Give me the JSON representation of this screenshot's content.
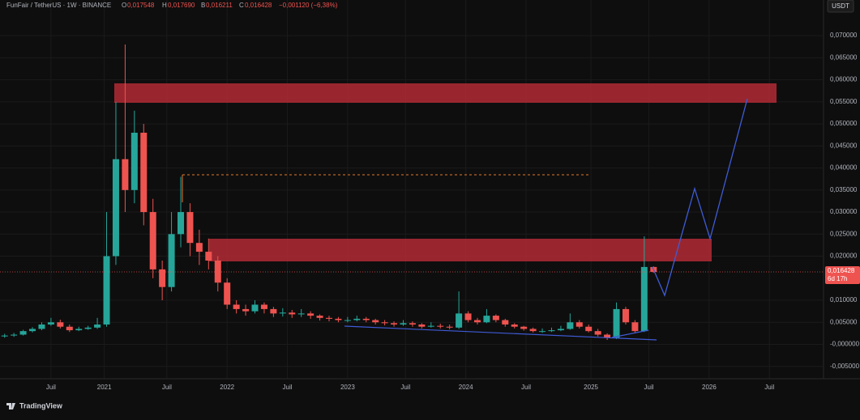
{
  "header": {
    "symbol": "FunFair / TetherUS · 1W · BINANCE",
    "o": "O",
    "open": "0,017548",
    "h": "H",
    "high": "0,017690",
    "b": "B",
    "low": "0,016211",
    "c": "C",
    "close": "0,016428",
    "change": "−0,001120 (−6,38%)",
    "currency": "USDT",
    "last_price_label": "0,016428",
    "countdown": "6d 17h",
    "brand": "TradingView"
  },
  "chart_data": {
    "type": "candlestick",
    "x": [
      2,
      6,
      10,
      14,
      18,
      22,
      26,
      30,
      34,
      38,
      42,
      46,
      50,
      54,
      58,
      62,
      66,
      70,
      74,
      78,
      82,
      86,
      90,
      94,
      98,
      102,
      106,
      110,
      114,
      118,
      122,
      126,
      130,
      134,
      138,
      142,
      146,
      150,
      154,
      158,
      162,
      166,
      170,
      174,
      178,
      182,
      186,
      190,
      194,
      198,
      202,
      206,
      210,
      214,
      218,
      222,
      226,
      230,
      234,
      238,
      242,
      246,
      250,
      254,
      258,
      262,
      266,
      270,
      274,
      278,
      282
    ],
    "open": [
      0.0018,
      0.002,
      0.0022,
      0.003,
      0.0035,
      0.0045,
      0.005,
      0.004,
      0.0032,
      0.0035,
      0.0038,
      0.0045,
      0.02,
      0.042,
      0.035,
      0.048,
      0.03,
      0.017,
      0.013,
      0.025,
      0.03,
      0.023,
      0.021,
      0.019,
      0.014,
      0.009,
      0.008,
      0.0075,
      0.009,
      0.008,
      0.007,
      0.0072,
      0.0068,
      0.007,
      0.0065,
      0.006,
      0.0058,
      0.0055,
      0.0055,
      0.0058,
      0.0055,
      0.005,
      0.0048,
      0.0045,
      0.0048,
      0.0045,
      0.004,
      0.0042,
      0.004,
      0.0038,
      0.007,
      0.0055,
      0.005,
      0.0065,
      0.0055,
      0.0045,
      0.004,
      0.0035,
      0.003,
      0.003,
      0.0032,
      0.0035,
      0.005,
      0.004,
      0.003,
      0.0022,
      0.0015,
      0.008,
      0.005,
      0.003,
      0.017548
    ],
    "high": [
      0.0024,
      0.0026,
      0.0033,
      0.0039,
      0.005,
      0.006,
      0.0056,
      0.0045,
      0.004,
      0.0042,
      0.006,
      0.03,
      0.055,
      0.068,
      0.053,
      0.05,
      0.033,
      0.019,
      0.03,
      0.038,
      0.032,
      0.026,
      0.024,
      0.02,
      0.015,
      0.01,
      0.009,
      0.01,
      0.0095,
      0.0085,
      0.0082,
      0.0078,
      0.008,
      0.0075,
      0.0068,
      0.0065,
      0.0062,
      0.0062,
      0.0065,
      0.0062,
      0.0058,
      0.0055,
      0.0052,
      0.0055,
      0.0052,
      0.0048,
      0.005,
      0.0047,
      0.0045,
      0.012,
      0.0075,
      0.006,
      0.008,
      0.0068,
      0.0058,
      0.0048,
      0.0042,
      0.0038,
      0.0036,
      0.0038,
      0.0042,
      0.007,
      0.0055,
      0.0045,
      0.0035,
      0.0025,
      0.0095,
      0.0085,
      0.0055,
      0.0245,
      0.01769
    ],
    "low": [
      0.0015,
      0.0017,
      0.002,
      0.0027,
      0.0032,
      0.0042,
      0.0036,
      0.0028,
      0.003,
      0.0033,
      0.0035,
      0.004,
      0.018,
      0.03,
      0.032,
      0.027,
      0.015,
      0.01,
      0.012,
      0.022,
      0.02,
      0.018,
      0.017,
      0.012,
      0.008,
      0.007,
      0.0065,
      0.007,
      0.007,
      0.0062,
      0.0063,
      0.006,
      0.0062,
      0.0058,
      0.0054,
      0.0052,
      0.005,
      0.005,
      0.0052,
      0.005,
      0.0045,
      0.0043,
      0.004,
      0.0042,
      0.004,
      0.0036,
      0.0038,
      0.0036,
      0.0034,
      0.0035,
      0.005,
      0.0045,
      0.0048,
      0.005,
      0.004,
      0.0036,
      0.0031,
      0.0027,
      0.0026,
      0.0028,
      0.003,
      0.0033,
      0.0036,
      0.0027,
      0.0018,
      0.001,
      0.0012,
      0.0045,
      0.0025,
      0.0028,
      0.016211
    ],
    "close": [
      0.002,
      0.0022,
      0.003,
      0.0035,
      0.0045,
      0.005,
      0.004,
      0.0032,
      0.0035,
      0.0038,
      0.0045,
      0.02,
      0.042,
      0.035,
      0.048,
      0.03,
      0.017,
      0.013,
      0.025,
      0.03,
      0.023,
      0.021,
      0.019,
      0.014,
      0.009,
      0.008,
      0.0075,
      0.009,
      0.008,
      0.007,
      0.0072,
      0.0068,
      0.007,
      0.0065,
      0.006,
      0.0058,
      0.0055,
      0.0055,
      0.0058,
      0.0055,
      0.005,
      0.0048,
      0.0045,
      0.0048,
      0.0045,
      0.004,
      0.0042,
      0.004,
      0.0038,
      0.007,
      0.0055,
      0.005,
      0.0065,
      0.0055,
      0.0045,
      0.004,
      0.0035,
      0.003,
      0.003,
      0.0032,
      0.0035,
      0.005,
      0.004,
      0.003,
      0.0022,
      0.0015,
      0.008,
      0.005,
      0.003,
      0.017548,
      0.016428
    ],
    "up_color": "#26a69a",
    "down_color": "#ef5350",
    "xlim": [
      0,
      355
    ],
    "ylim": [
      -0.0078,
      0.0781
    ],
    "xticks": [
      {
        "value": 22,
        "label": "Juil"
      },
      {
        "value": 45,
        "label": "2021"
      },
      {
        "value": 72,
        "label": "Juil"
      },
      {
        "value": 98,
        "label": "2022"
      },
      {
        "value": 124,
        "label": "Juil"
      },
      {
        "value": 150,
        "label": "2023"
      },
      {
        "value": 175,
        "label": "Juil"
      },
      {
        "value": 201,
        "label": "2024"
      },
      {
        "value": 227,
        "label": "Juil"
      },
      {
        "value": 255,
        "label": "2025"
      },
      {
        "value": 280,
        "label": "Juil"
      },
      {
        "value": 306,
        "label": "2026"
      },
      {
        "value": 332,
        "label": "Juil"
      }
    ],
    "yticks": [
      {
        "value": -0.005,
        "label": "-0,005000"
      },
      {
        "value": 0,
        "label": "-0,000000"
      },
      {
        "value": 0.005,
        "label": "0,005000"
      },
      {
        "value": 0.01,
        "label": "0,010000"
      },
      {
        "value": 0.02,
        "label": "0,020000"
      },
      {
        "value": 0.025,
        "label": "0,025000"
      },
      {
        "value": 0.03,
        "label": "0,030000"
      },
      {
        "value": 0.035,
        "label": "0,035000"
      },
      {
        "value": 0.04,
        "label": "0,040000"
      },
      {
        "value": 0.045,
        "label": "0,045000"
      },
      {
        "value": 0.05,
        "label": "0,050000"
      },
      {
        "value": 0.055,
        "label": "0,055000"
      },
      {
        "value": 0.06,
        "label": "0,060000"
      },
      {
        "value": 0.065,
        "label": "0,065000"
      },
      {
        "value": 0.07,
        "label": "0,070000"
      }
    ],
    "grid": true
  }
}
